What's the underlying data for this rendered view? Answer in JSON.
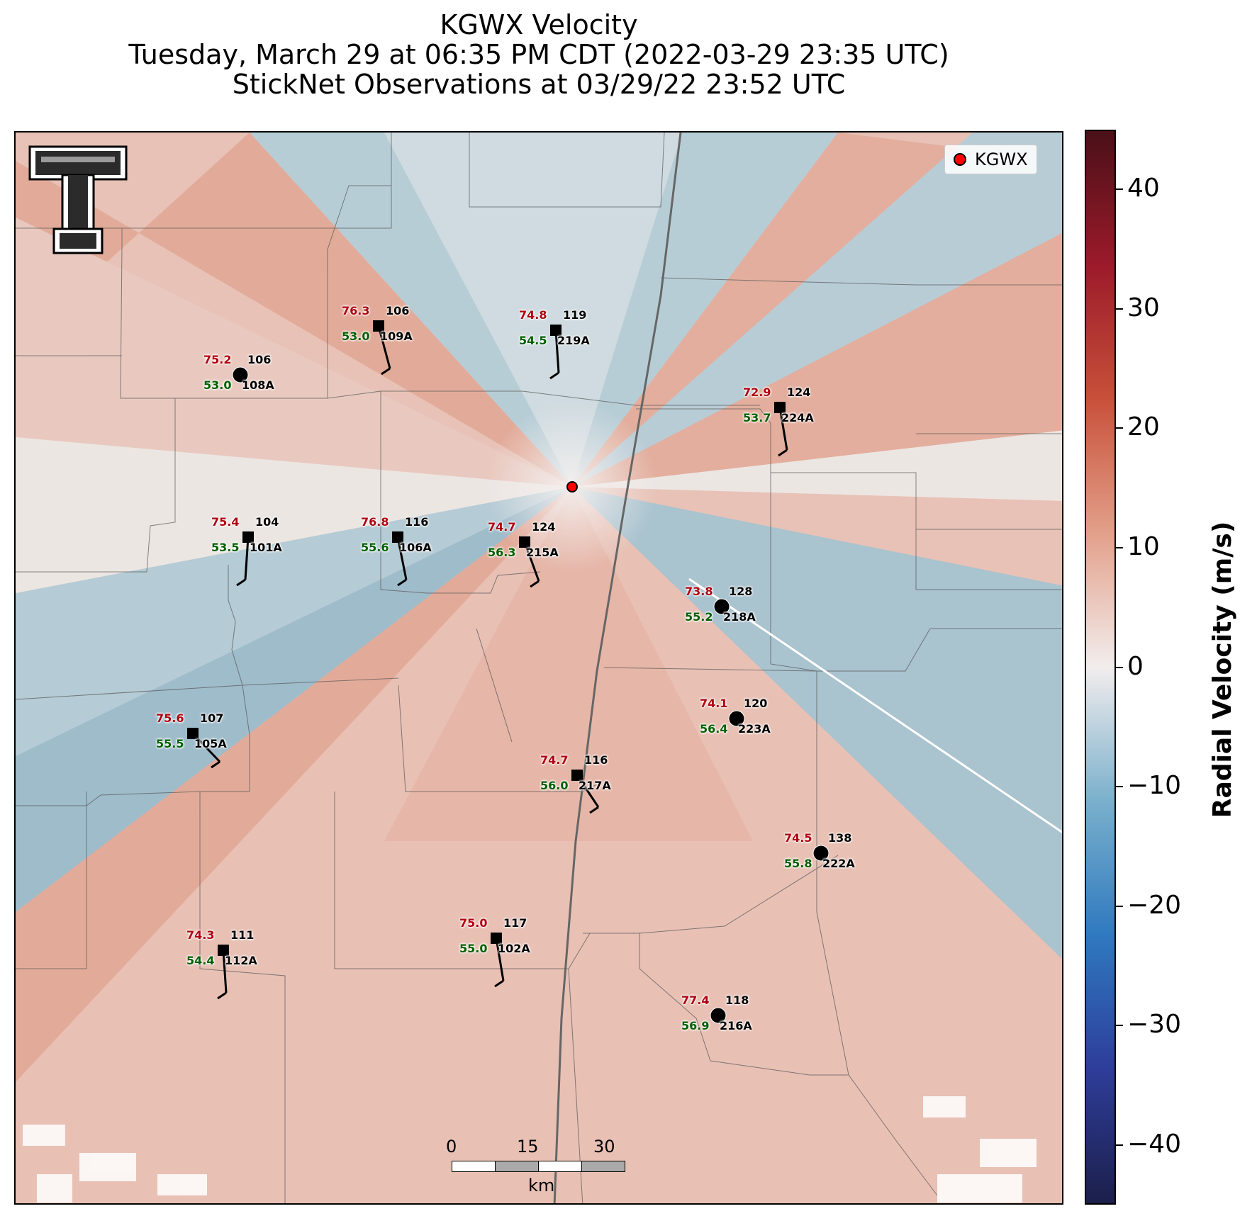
{
  "title": {
    "line1": "KGWX Velocity",
    "line2": "Tuesday, March 29 at 06:35 PM CDT (2022-03-29 23:35 UTC)",
    "line3": "StickNet Observations at 03/29/22 23:52 UTC"
  },
  "legend": {
    "label": "KGWX",
    "marker_color": "#ff0000"
  },
  "logo": {
    "icon": "texas-tech-double-t-logo"
  },
  "radar": {
    "name": "KGWX"
  },
  "colorbar": {
    "label": "Radial Velocity (m/s)",
    "range": [
      -45,
      45
    ],
    "ticks": [
      "40",
      "30",
      "20",
      "10",
      "0",
      "−10",
      "−20",
      "−30",
      "−40"
    ],
    "tick_values": [
      40,
      30,
      20,
      10,
      0,
      -10,
      -20,
      -30,
      -40
    ],
    "colors": [
      "#1c1f4a",
      "#2e3d9a",
      "#2f79c0",
      "#7ab0cc",
      "#f2eded",
      "#e3a08a",
      "#c8503a",
      "#9c1a2a",
      "#4a1018"
    ]
  },
  "scale_bar": {
    "ticks": [
      "0",
      "15",
      "30"
    ],
    "unit": "km"
  },
  "stations": [
    {
      "id": "108A",
      "temp": "75.2",
      "dew": "53.0",
      "wdir": "106",
      "marker": "circle"
    },
    {
      "id": "109A",
      "temp": "76.3",
      "dew": "53.0",
      "wdir": "106",
      "marker": "square"
    },
    {
      "id": "219A",
      "temp": "74.8",
      "dew": "54.5",
      "wdir": "119",
      "marker": "square"
    },
    {
      "id": "224A",
      "temp": "72.9",
      "dew": "53.7",
      "wdir": "124",
      "marker": "square"
    },
    {
      "id": "101A",
      "temp": "75.4",
      "dew": "53.5",
      "wdir": "104",
      "marker": "square"
    },
    {
      "id": "106A",
      "temp": "76.8",
      "dew": "55.6",
      "wdir": "116",
      "marker": "square"
    },
    {
      "id": "215A",
      "temp": "74.7",
      "dew": "56.3",
      "wdir": "124",
      "marker": "square"
    },
    {
      "id": "218A",
      "temp": "73.8",
      "dew": "55.2",
      "wdir": "128",
      "marker": "circle"
    },
    {
      "id": "223A",
      "temp": "74.1",
      "dew": "56.4",
      "wdir": "120",
      "marker": "circle"
    },
    {
      "id": "105A",
      "temp": "75.6",
      "dew": "55.5",
      "wdir": "107",
      "marker": "square"
    },
    {
      "id": "217A",
      "temp": "74.7",
      "dew": "56.0",
      "wdir": "116",
      "marker": "square"
    },
    {
      "id": "222A",
      "temp": "74.5",
      "dew": "55.8",
      "wdir": "138",
      "marker": "circle"
    },
    {
      "id": "112A",
      "temp": "74.3",
      "dew": "54.4",
      "wdir": "111",
      "marker": "square"
    },
    {
      "id": "102A",
      "temp": "75.0",
      "dew": "55.0",
      "wdir": "117",
      "marker": "square"
    },
    {
      "id": "216A",
      "temp": "77.4",
      "dew": "56.9",
      "wdir": "118",
      "marker": "circle"
    }
  ]
}
